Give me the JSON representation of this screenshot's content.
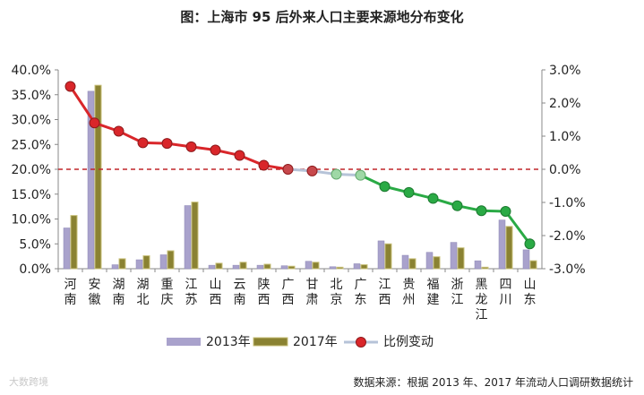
{
  "chart_data": {
    "type": "bar",
    "title": "图：上海市 95 后外来人口主要来源地分布变化",
    "categories": [
      "河南",
      "安徽",
      "湖南",
      "湖北",
      "重庆",
      "江苏",
      "山西",
      "云南",
      "陕西",
      "广西",
      "甘肃",
      "北京",
      "广东",
      "江西",
      "贵州",
      "福建",
      "浙江",
      "黑龙江",
      "四川",
      "山东"
    ],
    "series": [
      {
        "name": "2013年",
        "axis": "left",
        "color": "#a9a2cc",
        "values": [
          8.2,
          35.7,
          0.8,
          1.8,
          2.8,
          12.7,
          0.7,
          0.7,
          0.7,
          0.6,
          1.5,
          0.4,
          1.0,
          5.6,
          2.7,
          3.3,
          5.3,
          1.6,
          9.8,
          3.8
        ]
      },
      {
        "name": "2017年",
        "axis": "left",
        "color": "#8a8232",
        "values": [
          10.7,
          36.9,
          2.0,
          2.6,
          3.6,
          13.4,
          1.1,
          1.3,
          0.9,
          0.5,
          1.3,
          0.3,
          0.8,
          5.0,
          2.0,
          2.4,
          4.2,
          0.3,
          8.5,
          1.6
        ]
      },
      {
        "name": "比例变动",
        "axis": "right",
        "type": "line",
        "values": [
          2.5,
          1.4,
          1.15,
          0.8,
          0.78,
          0.68,
          0.58,
          0.42,
          0.12,
          0.0,
          -0.05,
          -0.15,
          -0.18,
          -0.52,
          -0.7,
          -0.88,
          -1.1,
          -1.25,
          -1.27,
          -2.25
        ]
      }
    ],
    "left_axis": {
      "min": 0,
      "max": 40,
      "step": 5,
      "ticks": [
        "0.0%",
        "5.0%",
        "10.0%",
        "15.0%",
        "20.0%",
        "25.0%",
        "30.0%",
        "35.0%",
        "40.0%"
      ]
    },
    "right_axis": {
      "min": -3,
      "max": 3,
      "step": 1,
      "ticks": [
        "-3.0%",
        "-2.0%",
        "-1.0%",
        "0.0%",
        "1.0%",
        "2.0%",
        "3.0%"
      ]
    },
    "legend_position": "bottom",
    "grid": false
  },
  "colors": {
    "positive_line": "#d9262a",
    "neutral_line": "#b6c3d8",
    "negative_line": "#2aaa45",
    "zero_line": "#c0262a",
    "axis": "#888888"
  },
  "footer": {
    "source": "数据来源：根据 2013 年、2017 年流动人口调研数据统计",
    "watermark": "大数跨境"
  }
}
